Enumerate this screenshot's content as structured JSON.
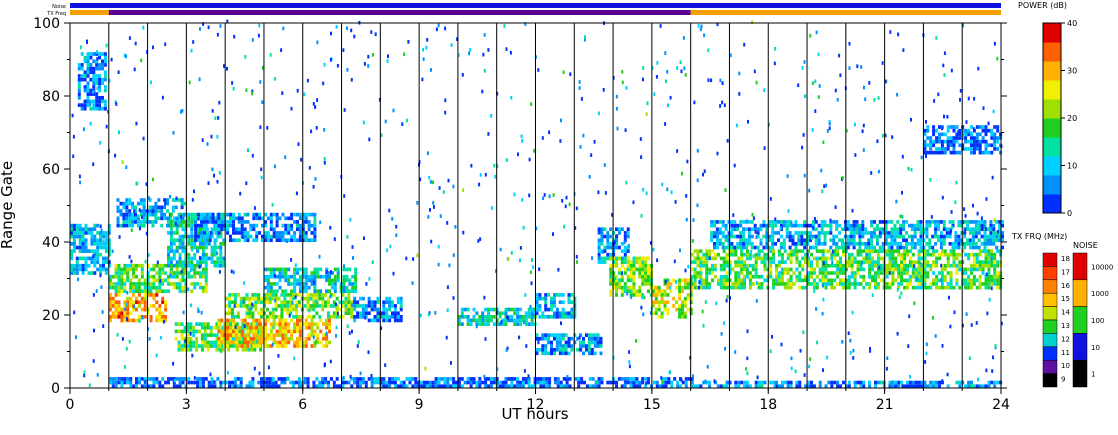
{
  "chart_data": {
    "type": "heatmap",
    "xlabel": "UT hours",
    "ylabel": "Range Gate",
    "xlim": [
      0,
      24
    ],
    "ylim": [
      0,
      100
    ],
    "x_ticks": [
      "0",
      "3",
      "6",
      "9",
      "12",
      "15",
      "18",
      "21",
      "24"
    ],
    "y_ticks": [
      "0",
      "20",
      "40",
      "60",
      "80",
      "100"
    ],
    "hour_lines": [
      1,
      2,
      3,
      4,
      5,
      6,
      7,
      8,
      9,
      10,
      11,
      12,
      13,
      14,
      15,
      16,
      17,
      18,
      19,
      20,
      21,
      22,
      23
    ],
    "status_bars": {
      "noise_label": "Noise",
      "txfreq_label": "TX Freq",
      "noise_color": "#1010e0",
      "txfreq_segments": [
        {
          "start": 0,
          "end": 1,
          "color": "#f5a000"
        },
        {
          "start": 1,
          "end": 16,
          "color": "#5a0090"
        },
        {
          "start": 16,
          "end": 24,
          "color": "#f5a000"
        }
      ]
    },
    "power_scale": {
      "title": "POWER (dB)",
      "ticks": [
        "0",
        "10",
        "20",
        "30",
        "40"
      ],
      "colors": [
        "#0030ff",
        "#0090ff",
        "#00d0ff",
        "#00e0a0",
        "#20d020",
        "#a0e000",
        "#f0f000",
        "#ffb000",
        "#ff6000",
        "#e00000"
      ]
    },
    "txfreq_scale": {
      "title": "TX FRQ (MHz)",
      "ticks": [
        "18",
        "17",
        "16",
        "15",
        "14",
        "13",
        "12",
        "11",
        "10",
        "9"
      ],
      "colors": [
        "#e00000",
        "#ff4000",
        "#ff8000",
        "#ffc000",
        "#c0e000",
        "#20d020",
        "#00d0d0",
        "#0030ff",
        "#6010a0",
        "#000000"
      ]
    },
    "noise_scale": {
      "title": "NOISE",
      "ticks": [
        "10000",
        "1000",
        "100",
        "10",
        "1"
      ],
      "colors": [
        "#e00000",
        "#ffb000",
        "#20d020",
        "#1010e0",
        "#000000"
      ]
    },
    "echo_regions": [
      {
        "x0": 0.0,
        "x1": 1.0,
        "y0": 31,
        "y1": 45,
        "intensity": 0.22
      },
      {
        "x0": 0.2,
        "x1": 0.9,
        "y0": 76,
        "y1": 92,
        "intensity": 0.15
      },
      {
        "x0": 1.0,
        "x1": 2.5,
        "y0": 18,
        "y1": 26,
        "intensity": 0.75
      },
      {
        "x0": 1.0,
        "x1": 3.5,
        "y0": 26,
        "y1": 34,
        "intensity": 0.45
      },
      {
        "x0": 1.2,
        "x1": 3.0,
        "y0": 44,
        "y1": 52,
        "intensity": 0.2
      },
      {
        "x0": 2.5,
        "x1": 4.0,
        "y0": 33,
        "y1": 48,
        "intensity": 0.3
      },
      {
        "x0": 2.7,
        "x1": 5.0,
        "y0": 10,
        "y1": 18,
        "intensity": 0.45
      },
      {
        "x0": 3.8,
        "x1": 6.7,
        "y0": 11,
        "y1": 19,
        "intensity": 0.72
      },
      {
        "x0": 4.0,
        "x1": 7.3,
        "y0": 19,
        "y1": 26,
        "intensity": 0.5
      },
      {
        "x0": 5.0,
        "x1": 7.4,
        "y0": 26,
        "y1": 33,
        "intensity": 0.3
      },
      {
        "x0": 3.2,
        "x1": 6.3,
        "y0": 40,
        "y1": 48,
        "intensity": 0.15
      },
      {
        "x0": 7.3,
        "x1": 8.5,
        "y0": 18,
        "y1": 25,
        "intensity": 0.15
      },
      {
        "x0": 10.0,
        "x1": 12.0,
        "y0": 17,
        "y1": 22,
        "intensity": 0.3
      },
      {
        "x0": 12.0,
        "x1": 13.0,
        "y0": 19,
        "y1": 26,
        "intensity": 0.22
      },
      {
        "x0": 12.0,
        "x1": 13.7,
        "y0": 9,
        "y1": 15,
        "intensity": 0.2
      },
      {
        "x0": 13.6,
        "x1": 14.4,
        "y0": 34,
        "y1": 44,
        "intensity": 0.2
      },
      {
        "x0": 13.9,
        "x1": 15.0,
        "y0": 25,
        "y1": 36,
        "intensity": 0.5
      },
      {
        "x0": 15.0,
        "x1": 16.0,
        "y0": 19,
        "y1": 30,
        "intensity": 0.58
      },
      {
        "x0": 16.0,
        "x1": 24.0,
        "y0": 27,
        "y1": 38,
        "intensity": 0.45
      },
      {
        "x0": 16.5,
        "x1": 24.0,
        "y0": 38,
        "y1": 46,
        "intensity": 0.22
      },
      {
        "x0": 16.0,
        "x1": 24.0,
        "y0": 0,
        "y1": 2,
        "intensity": 0.15
      },
      {
        "x0": 1.0,
        "x1": 16.0,
        "y0": 0,
        "y1": 3,
        "intensity": 0.12
      },
      {
        "x0": 22.0,
        "x1": 24.0,
        "y0": 64,
        "y1": 72,
        "intensity": 0.12
      }
    ]
  }
}
